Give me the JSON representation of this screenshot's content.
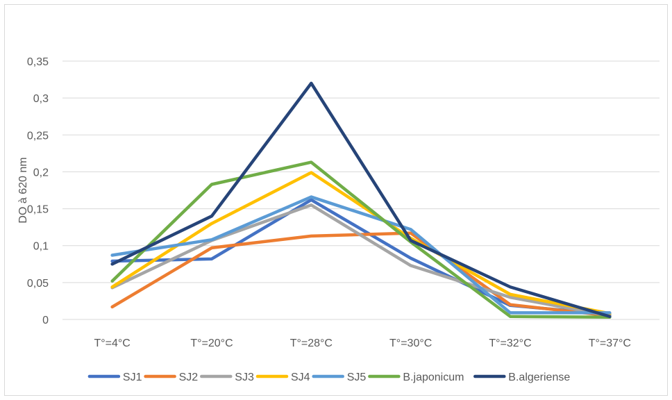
{
  "chart_data": {
    "type": "line",
    "title": "",
    "xlabel": "",
    "ylabel": "DO à 620 nm",
    "categories": [
      "T°=4°C",
      "T°=20°C",
      "T°=28°C",
      "T°=30°C",
      "T°=32°C",
      "T°=37°C"
    ],
    "ylim": [
      0,
      0.35
    ],
    "yticks": [
      0,
      0.05,
      0.1,
      0.15,
      0.2,
      0.25,
      0.3,
      0.35
    ],
    "ytick_labels": [
      "0",
      "0,05",
      "0,1",
      "0,15",
      "0,2",
      "0,25",
      "0,3",
      "0,35"
    ],
    "grid": true,
    "legend_position": "bottom",
    "series": [
      {
        "name": "SJ1",
        "color": "#4472C4",
        "values": [
          0.079,
          0.082,
          0.162,
          0.083,
          0.019,
          0.007
        ]
      },
      {
        "name": "SJ2",
        "color": "#ED7D31",
        "values": [
          0.017,
          0.097,
          0.113,
          0.117,
          0.02,
          0.005
        ]
      },
      {
        "name": "SJ3",
        "color": "#A5A5A5",
        "values": [
          0.043,
          0.107,
          0.155,
          0.073,
          0.03,
          0.005
        ]
      },
      {
        "name": "SJ4",
        "color": "#FFC000",
        "values": [
          0.044,
          0.13,
          0.199,
          0.11,
          0.034,
          0.008
        ]
      },
      {
        "name": "SJ5",
        "color": "#5B9BD5",
        "values": [
          0.087,
          0.108,
          0.166,
          0.122,
          0.009,
          0.009
        ]
      },
      {
        "name": "B.japonicum",
        "color": "#70AD47",
        "values": [
          0.052,
          0.183,
          0.213,
          0.105,
          0.004,
          0.003
        ]
      },
      {
        "name": "B.algeriense",
        "color": "#264478",
        "values": [
          0.075,
          0.14,
          0.32,
          0.107,
          0.044,
          0.004
        ]
      }
    ]
  }
}
